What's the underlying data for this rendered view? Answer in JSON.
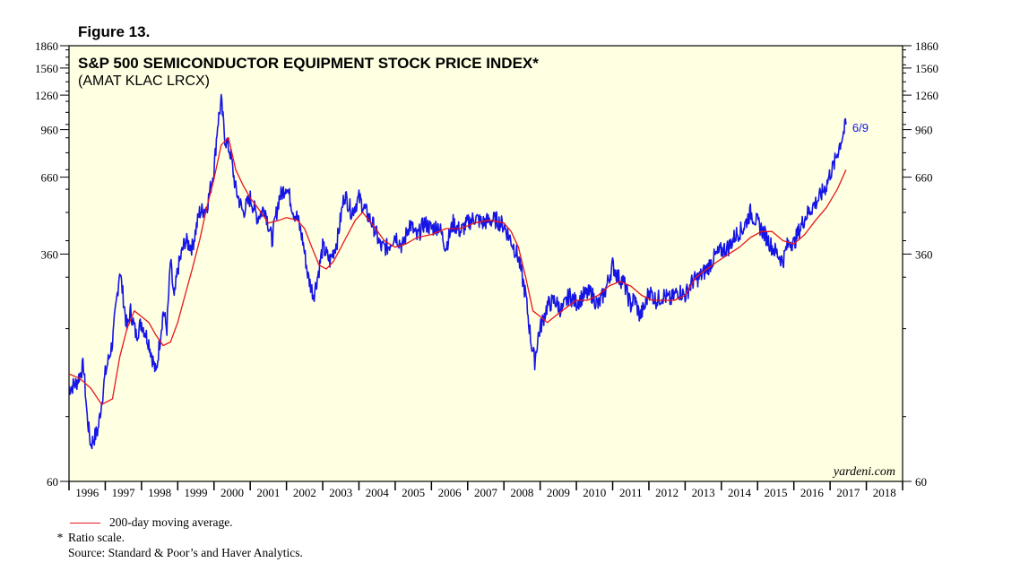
{
  "figure_label": "Figure 13.",
  "chart_data": {
    "type": "line",
    "title": "S&P 500 SEMICONDUCTOR EQUIPMENT STOCK PRICE INDEX*",
    "subtitle": "(AMAT KLAC LRCX)",
    "scale": "log",
    "ylim": [
      60,
      1860
    ],
    "y_ticks": [
      60,
      360,
      660,
      960,
      1260,
      1560,
      1860
    ],
    "x_range": [
      1996,
      2019
    ],
    "x_labels": [
      "1996",
      "1997",
      "1998",
      "1999",
      "2000",
      "2001",
      "2002",
      "2003",
      "2004",
      "2005",
      "2006",
      "2007",
      "2008",
      "2009",
      "2010",
      "2011",
      "2012",
      "2013",
      "2014",
      "2015",
      "2016",
      "2017",
      "2018"
    ],
    "end_label": "6/9",
    "watermark": "yardeni.com",
    "series": [
      {
        "name": "Index",
        "color": "#1515e6",
        "x": [
          1996.0,
          1996.2,
          1996.4,
          1996.5,
          1996.6,
          1996.8,
          1997.0,
          1997.2,
          1997.4,
          1997.6,
          1997.7,
          1997.85,
          1998.0,
          1998.2,
          1998.4,
          1998.6,
          1998.7,
          1998.8,
          1998.9,
          1999.0,
          1999.2,
          1999.4,
          1999.6,
          1999.8,
          2000.0,
          2000.1,
          2000.2,
          2000.3,
          2000.45,
          2000.6,
          2000.8,
          2001.0,
          2001.2,
          2001.4,
          2001.6,
          2001.7,
          2001.8,
          2002.0,
          2002.2,
          2002.3,
          2002.45,
          2002.6,
          2002.75,
          2002.9,
          2003.0,
          2003.2,
          2003.4,
          2003.6,
          2003.8,
          2004.0,
          2004.2,
          2004.4,
          2004.6,
          2004.8,
          2005.0,
          2005.2,
          2005.4,
          2005.6,
          2005.8,
          2006.0,
          2006.2,
          2006.4,
          2006.6,
          2006.8,
          2007.0,
          2007.2,
          2007.4,
          2007.6,
          2007.8,
          2008.0,
          2008.2,
          2008.4,
          2008.6,
          2008.75,
          2008.85,
          2008.95,
          2009.0,
          2009.2,
          2009.4,
          2009.6,
          2009.8,
          2010.0,
          2010.2,
          2010.4,
          2010.6,
          2010.8,
          2011.0,
          2011.15,
          2011.3,
          2011.5,
          2011.6,
          2011.75,
          2011.9,
          2012.0,
          2012.2,
          2012.4,
          2012.6,
          2012.8,
          2013.0,
          2013.2,
          2013.4,
          2013.6,
          2013.8,
          2014.0,
          2014.2,
          2014.4,
          2014.6,
          2014.8,
          2015.0,
          2015.2,
          2015.4,
          2015.55,
          2015.7,
          2015.8,
          2015.9,
          2016.0,
          2016.1,
          2016.3,
          2016.5,
          2016.7,
          2016.9,
          2017.0,
          2017.1,
          2017.2,
          2017.3,
          2017.44
        ],
        "values": [
          125,
          130,
          150,
          100,
          80,
          90,
          140,
          180,
          320,
          200,
          230,
          190,
          210,
          180,
          140,
          230,
          200,
          340,
          250,
          320,
          400,
          380,
          500,
          520,
          700,
          1000,
          1200,
          900,
          800,
          600,
          500,
          560,
          480,
          520,
          400,
          480,
          560,
          620,
          500,
          480,
          400,
          300,
          260,
          320,
          380,
          340,
          400,
          580,
          500,
          560,
          500,
          450,
          380,
          380,
          420,
          380,
          460,
          410,
          460,
          440,
          450,
          380,
          460,
          430,
          460,
          480,
          460,
          470,
          470,
          450,
          400,
          350,
          260,
          180,
          155,
          190,
          200,
          240,
          250,
          230,
          260,
          245,
          260,
          265,
          240,
          270,
          330,
          300,
          290,
          240,
          255,
          220,
          240,
          270,
          250,
          260,
          250,
          270,
          260,
          290,
          300,
          320,
          350,
          370,
          380,
          420,
          440,
          500,
          460,
          420,
          380,
          360,
          340,
          380,
          400,
          390,
          420,
          480,
          520,
          560,
          620,
          680,
          720,
          800,
          880,
          1000
        ]
      },
      {
        "name": "200-day moving average.",
        "color": "#e8161b",
        "x": [
          1996.0,
          1996.3,
          1996.6,
          1996.9,
          1997.2,
          1997.4,
          1997.6,
          1997.8,
          1998.0,
          1998.2,
          1998.4,
          1998.6,
          1998.8,
          1999.0,
          1999.2,
          1999.4,
          1999.6,
          1999.8,
          2000.0,
          2000.2,
          2000.4,
          2000.6,
          2000.8,
          2001.0,
          2001.2,
          2001.5,
          2001.8,
          2002.0,
          2002.3,
          2002.5,
          2002.7,
          2002.9,
          2003.1,
          2003.3,
          2003.6,
          2003.9,
          2004.1,
          2004.4,
          2004.7,
          2005.0,
          2005.3,
          2005.6,
          2006.0,
          2006.4,
          2006.8,
          2007.2,
          2007.6,
          2008.0,
          2008.2,
          2008.4,
          2008.6,
          2008.8,
          2009.0,
          2009.2,
          2009.4,
          2009.6,
          2009.8,
          2010.0,
          2010.3,
          2010.6,
          2010.9,
          2011.2,
          2011.5,
          2011.8,
          2012.1,
          2012.4,
          2012.7,
          2013.0,
          2013.3,
          2013.6,
          2013.9,
          2014.2,
          2014.5,
          2014.8,
          2015.1,
          2015.4,
          2015.7,
          2016.0,
          2016.3,
          2016.6,
          2016.9,
          2017.2,
          2017.44
        ],
        "values": [
          140,
          135,
          125,
          110,
          115,
          160,
          200,
          230,
          220,
          210,
          190,
          175,
          180,
          210,
          260,
          320,
          400,
          520,
          650,
          850,
          900,
          700,
          620,
          560,
          520,
          460,
          470,
          480,
          470,
          440,
          380,
          330,
          320,
          340,
          400,
          470,
          500,
          450,
          400,
          380,
          390,
          410,
          420,
          440,
          440,
          460,
          470,
          460,
          430,
          380,
          300,
          230,
          220,
          210,
          220,
          230,
          240,
          250,
          250,
          260,
          280,
          290,
          280,
          260,
          250,
          250,
          250,
          260,
          300,
          320,
          340,
          360,
          380,
          410,
          430,
          430,
          400,
          390,
          420,
          470,
          520,
          600,
          700
        ]
      }
    ],
    "legend": [
      "200-day moving average."
    ],
    "notes": [
      "* Ratio scale.",
      "Source: Standard & Poor’s and Haver Analytics."
    ]
  },
  "footer": {
    "legend_text": "200-day moving average.",
    "note_star": "*",
    "note_text": "Ratio scale.",
    "source_text": "Source: Standard & Poor’s and Haver Analytics."
  }
}
